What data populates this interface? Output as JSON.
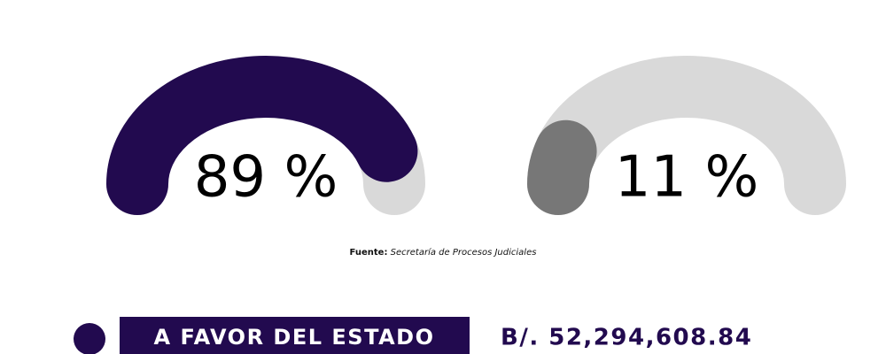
{
  "chart_data": [
    {
      "type": "gauge",
      "values": [
        89
      ],
      "value_labels": [
        "89 %"
      ],
      "ylim": [
        0,
        100
      ],
      "color": "#220a4f",
      "track_color": "#d9d9d9"
    },
    {
      "type": "gauge",
      "values": [
        11
      ],
      "value_labels": [
        "11 %"
      ],
      "ylim": [
        0,
        100
      ],
      "color": "#777777",
      "track_color": "#d9d9d9"
    }
  ],
  "source": {
    "label": "Fuente:",
    "text": "Secretaría de Procesos Judiciales"
  },
  "legend": {
    "label": "A FAVOR DEL ESTADO",
    "amount": "B/. 52,294,608.84",
    "color": "#220a4f"
  }
}
